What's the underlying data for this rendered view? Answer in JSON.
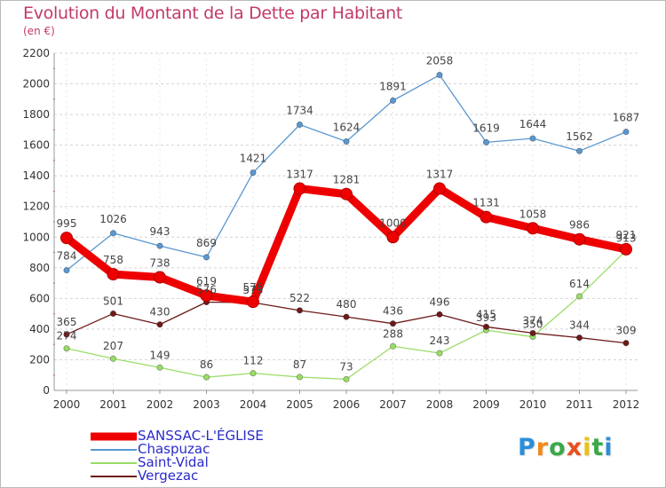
{
  "chart_data": {
    "type": "line",
    "title": "Evolution du Montant de la Dette par Habitant",
    "subtitle": "(en €)",
    "x": [
      "2000",
      "2001",
      "2002",
      "2003",
      "2004",
      "2005",
      "2006",
      "2007",
      "2008",
      "2009",
      "2010",
      "2011",
      "2012"
    ],
    "ylim": [
      0,
      2200
    ],
    "yticks": [
      0,
      200,
      400,
      600,
      800,
      1000,
      1200,
      1400,
      1600,
      1800,
      2000,
      2200
    ],
    "grid": "horizontal-dashed",
    "legend_position": "bottom-left",
    "series": [
      {
        "name": "SANSSAC-L'ÉGLISE",
        "color": "#ee0000",
        "values": [
          995,
          758,
          738,
          619,
          578,
          1317,
          1281,
          1000,
          1317,
          1131,
          1058,
          986,
          921
        ]
      },
      {
        "name": "Chaspuzac",
        "color": "#5a98d0",
        "values": [
          784,
          1026,
          943,
          869,
          1421,
          1734,
          1624,
          1891,
          2058,
          1619,
          1644,
          1562,
          1687
        ]
      },
      {
        "name": "Saint-Vidal",
        "color": "#99dd66",
        "values": [
          274,
          207,
          149,
          86,
          112,
          87,
          73,
          288,
          243,
          393,
          350,
          614,
          913
        ]
      },
      {
        "name": "Vergezac",
        "color": "#6e1a1a",
        "values": [
          365,
          501,
          430,
          576,
          573,
          522,
          480,
          436,
          496,
          415,
          374,
          344,
          309
        ]
      }
    ]
  },
  "logo": {
    "letters": [
      "P",
      "r",
      "o",
      "x",
      "i",
      "t",
      "i"
    ],
    "colors": [
      "#2b8fd8",
      "#f28a1a",
      "#3aa84a",
      "#e8501c",
      "#e8c21a",
      "#3aa84a",
      "#2b8fd8"
    ]
  }
}
